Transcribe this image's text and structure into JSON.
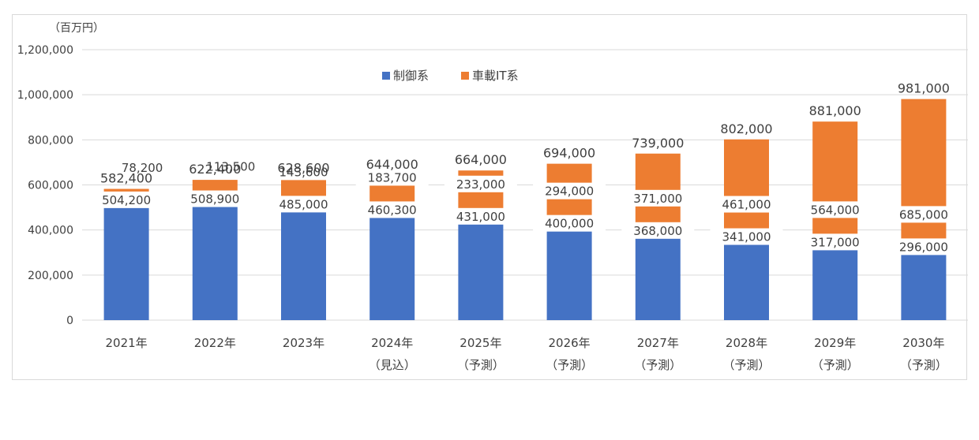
{
  "chart_data": {
    "type": "bar",
    "stacked": true,
    "unit_label": "（百万円）",
    "categories": [
      [
        "2021年",
        ""
      ],
      [
        "2022年",
        ""
      ],
      [
        "2023年",
        ""
      ],
      [
        "2024年",
        "（見込）"
      ],
      [
        "2025年",
        "（予測）"
      ],
      [
        "2026年",
        "（予測）"
      ],
      [
        "2027年",
        "（予測）"
      ],
      [
        "2028年",
        "（予測）"
      ],
      [
        "2029年",
        "（予測）"
      ],
      [
        "2030年",
        "（予測）"
      ]
    ],
    "series": [
      {
        "name": "制御系",
        "color": "#4472c4",
        "values": [
          504200,
          508900,
          485000,
          460300,
          431000,
          400000,
          368000,
          341000,
          317000,
          296000
        ],
        "labels": [
          "504,200",
          "508,900",
          "485,000",
          "460,300",
          "431,000",
          "400,000",
          "368,000",
          "341,000",
          "317,000",
          "296,000"
        ]
      },
      {
        "name": "車載IT系",
        "color": "#ed7d31",
        "values": [
          78200,
          113500,
          143600,
          183700,
          233000,
          294000,
          371000,
          461000,
          564000,
          685000
        ],
        "labels": [
          "78,200",
          "113,500",
          "143,600",
          "183,700",
          "233,000",
          "294,000",
          "371,000",
          "461,000",
          "564,000",
          "685,000"
        ]
      }
    ],
    "totals": [
      582400,
      622400,
      628600,
      644000,
      664000,
      694000,
      739000,
      802000,
      881000,
      981000
    ],
    "total_labels": [
      "582,400",
      "622,400",
      "628,600",
      "644,000",
      "664,000",
      "694,000",
      "739,000",
      "802,000",
      "881,000",
      "981,000"
    ],
    "ylim": [
      0,
      1200000
    ],
    "yticks": [
      0,
      200000,
      400000,
      600000,
      800000,
      1000000,
      1200000
    ],
    "ytick_labels": [
      "0",
      "200,000",
      "400,000",
      "600,000",
      "800,000",
      "1,000,000",
      "1,200,000"
    ],
    "grid": true,
    "legend_position": "top-center",
    "gridline_color": "#d9d9d9"
  }
}
